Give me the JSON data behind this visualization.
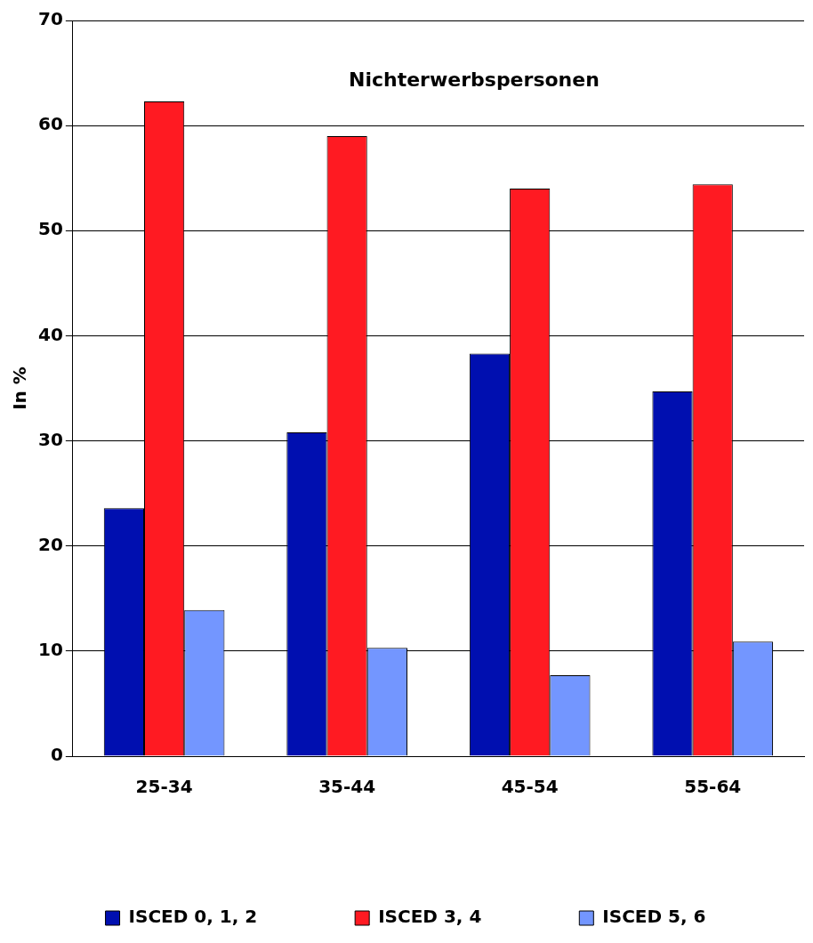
{
  "chart_data": {
    "type": "bar",
    "title": "Nichterwerbspersonen",
    "ylabel": "In %",
    "categories": [
      "25-34",
      "35-44",
      "45-54",
      "55-64"
    ],
    "series": [
      {
        "name": "ISCED 0, 1, 2",
        "color": "#000fb0",
        "values": [
          23.6,
          30.8,
          38.3,
          34.7
        ]
      },
      {
        "name": "ISCED 3, 4",
        "color": "#ff1a22",
        "values": [
          62.3,
          59.0,
          54.0,
          54.4
        ]
      },
      {
        "name": "ISCED 5, 6",
        "color": "#7396ff",
        "values": [
          13.9,
          10.3,
          7.7,
          10.9
        ]
      }
    ],
    "ylim": [
      0,
      70
    ],
    "yticks": [
      0,
      10,
      20,
      30,
      40,
      50,
      60,
      70
    ],
    "grid": "y",
    "legend": "bottom"
  }
}
